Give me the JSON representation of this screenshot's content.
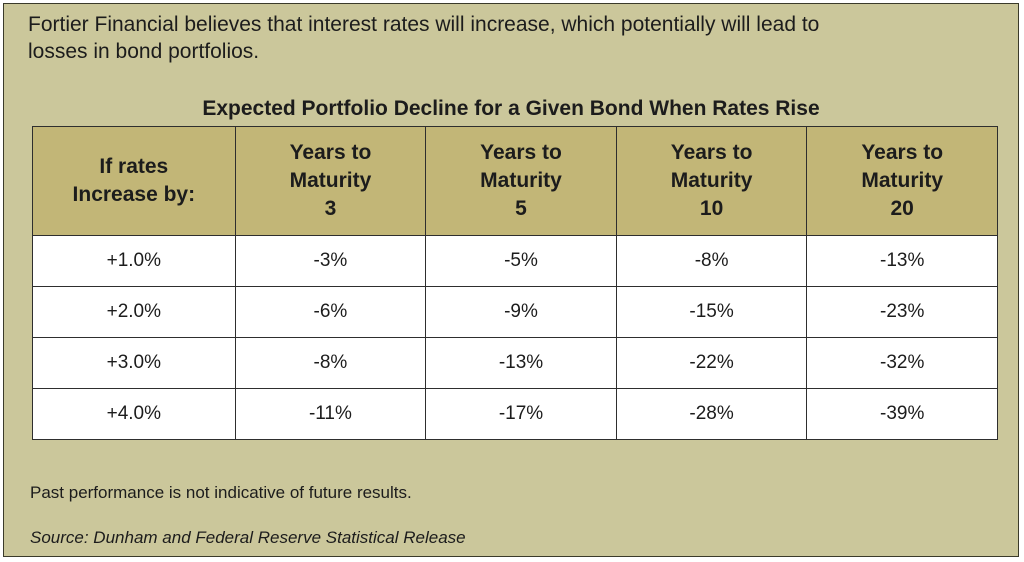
{
  "intro": {
    "line1": "Fortier Financial believes that interest rates will increase, which potentially will lead to",
    "line2": "losses in bond portfolios."
  },
  "chart_data": {
    "type": "table",
    "title": "Expected Portfolio Decline for a Given Bond When Rates Rise",
    "columns": [
      [
        "If rates",
        "Increase by:"
      ],
      [
        "Years to",
        "Maturity",
        "3"
      ],
      [
        "Years to",
        "Maturity",
        "5"
      ],
      [
        "Years to",
        "Maturity",
        "10"
      ],
      [
        "Years to",
        "Maturity",
        "20"
      ]
    ],
    "rows": [
      [
        "+1.0%",
        "-3%",
        "-5%",
        "-8%",
        "-13%"
      ],
      [
        "+2.0%",
        "-6%",
        "-9%",
        "-15%",
        "-23%"
      ],
      [
        "+3.0%",
        "-8%",
        "-13%",
        "-22%",
        "-32%"
      ],
      [
        "+4.0%",
        "-11%",
        "-17%",
        "-28%",
        "-39%"
      ]
    ],
    "colors": {
      "panel_background": "#cbc79b",
      "header_background": "#c2b677",
      "cell_background": "#ffffff"
    }
  },
  "footer": {
    "note": "Past performance is not indicative of future results.",
    "source": "Source: Dunham and Federal Reserve Statistical Release"
  }
}
